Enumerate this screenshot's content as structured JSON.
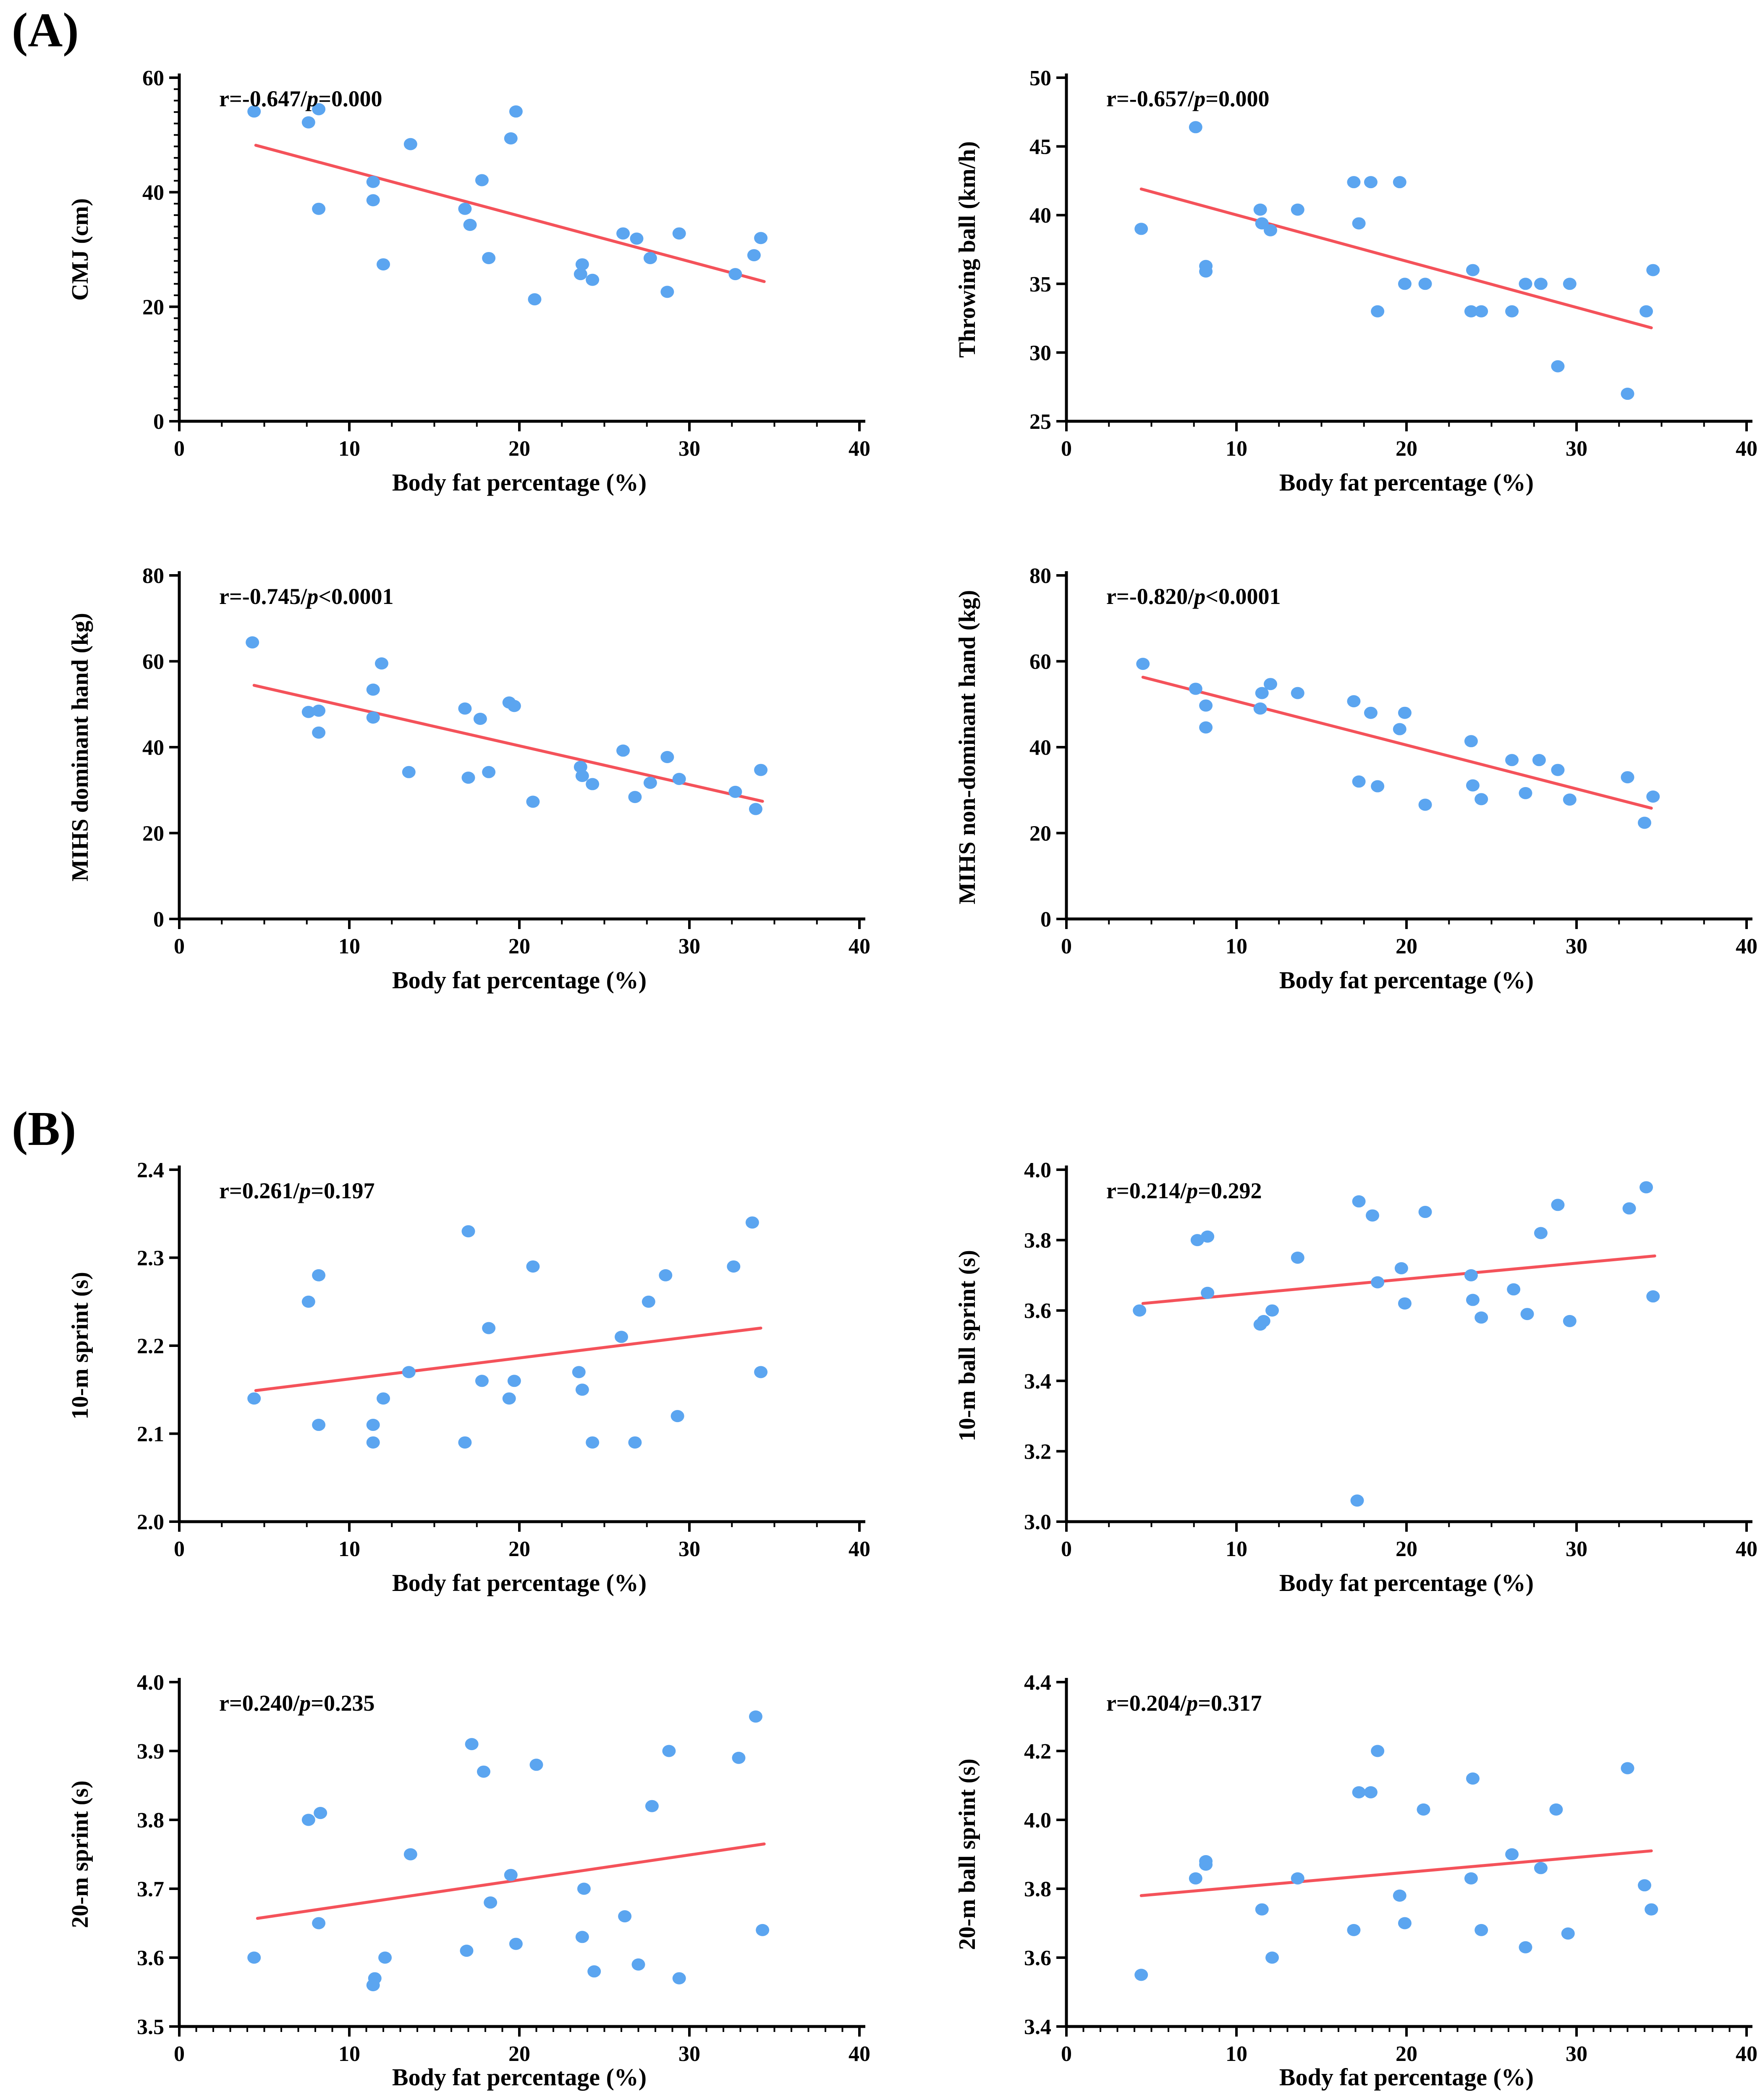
{
  "panels": [
    {
      "label": "(A)"
    },
    {
      "label": "(B)"
    }
  ],
  "styles": {
    "point_color": "#5BA5F0",
    "line_color": "#F4525A",
    "axis_color": "#000000",
    "text_color": "#000000",
    "background": "#FFFFFF"
  },
  "chart_data": [
    {
      "type": "scatter",
      "key": "cmj",
      "panel": "A",
      "ylabel": "CMJ (cm)",
      "xlabel": "Body fat percentage (%)",
      "annotation": {
        "prefix": "r=-0.647/",
        "p": "p",
        "suffix": "=0.000"
      },
      "xlim": [
        0,
        40
      ],
      "ylim": [
        0,
        60
      ],
      "xtick_values": [
        0,
        10,
        20,
        30,
        40
      ],
      "xtick_labels": [
        "0",
        "10",
        "20",
        "30",
        "40"
      ],
      "ytick_values": [
        0,
        20,
        40,
        60
      ],
      "ytick_labels": [
        "0",
        "20",
        "40",
        "60"
      ],
      "x_minor_step": 2.5,
      "y_minor_step": 2,
      "grid": false,
      "legend": null,
      "points": [
        [
          4.4,
          54.1
        ],
        [
          7.6,
          52.2
        ],
        [
          8.2,
          54.5
        ],
        [
          8.2,
          37.1
        ],
        [
          11.4,
          41.8
        ],
        [
          11.4,
          38.6
        ],
        [
          12.0,
          27.4
        ],
        [
          13.6,
          48.4
        ],
        [
          16.8,
          37.1
        ],
        [
          17.1,
          34.3
        ],
        [
          17.8,
          42.1
        ],
        [
          18.2,
          28.5
        ],
        [
          19.5,
          49.4
        ],
        [
          19.8,
          54.1
        ],
        [
          20.9,
          21.3
        ],
        [
          23.6,
          25.7
        ],
        [
          23.7,
          27.4
        ],
        [
          24.3,
          24.7
        ],
        [
          26.1,
          32.8
        ],
        [
          26.9,
          31.9
        ],
        [
          27.7,
          28.5
        ],
        [
          28.7,
          22.6
        ],
        [
          29.4,
          32.8
        ],
        [
          32.7,
          25.7
        ],
        [
          33.8,
          29.0
        ],
        [
          34.2,
          32.0
        ]
      ],
      "trend": {
        "x1": 4.5,
        "y1": 48.2,
        "x2": 34.4,
        "y2": 24.4
      }
    },
    {
      "type": "scatter",
      "key": "throwing-ball",
      "panel": "A",
      "ylabel": "Throwing ball (km/h)",
      "xlabel": "Body fat percentage (%)",
      "annotation": {
        "prefix": "r=-0.657/",
        "p": "p",
        "suffix": "=0.000"
      },
      "xlim": [
        0,
        40
      ],
      "ylim": [
        25,
        50
      ],
      "xtick_values": [
        0,
        10,
        20,
        30,
        40
      ],
      "xtick_labels": [
        "0",
        "10",
        "20",
        "30",
        "40"
      ],
      "ytick_values": [
        25,
        30,
        35,
        40,
        45,
        50
      ],
      "ytick_labels": [
        "25",
        "30",
        "35",
        "40",
        "45",
        "50"
      ],
      "x_minor_step": 2.5,
      "y_minor_step": null,
      "grid": false,
      "legend": null,
      "points": [
        [
          4.4,
          39.0
        ],
        [
          7.6,
          46.4
        ],
        [
          8.2,
          36.3
        ],
        [
          8.2,
          35.9
        ],
        [
          11.4,
          40.4
        ],
        [
          11.5,
          39.4
        ],
        [
          12.0,
          38.9
        ],
        [
          13.6,
          40.4
        ],
        [
          16.9,
          42.4
        ],
        [
          17.2,
          39.4
        ],
        [
          17.9,
          42.4
        ],
        [
          18.3,
          33.0
        ],
        [
          19.6,
          42.4
        ],
        [
          19.9,
          35.0
        ],
        [
          21.1,
          35.0
        ],
        [
          23.8,
          33.0
        ],
        [
          23.9,
          36.0
        ],
        [
          24.4,
          33.0
        ],
        [
          26.2,
          33.0
        ],
        [
          27.0,
          35.0
        ],
        [
          27.9,
          35.0
        ],
        [
          28.9,
          29.0
        ],
        [
          29.6,
          35.0
        ],
        [
          33.0,
          27.0
        ],
        [
          34.1,
          33.0
        ],
        [
          34.5,
          36.0
        ]
      ],
      "trend": {
        "x1": 4.4,
        "y1": 41.9,
        "x2": 34.4,
        "y2": 31.8
      }
    },
    {
      "type": "scatter",
      "key": "mihs-dominant",
      "panel": "A",
      "ylabel": "MIHS dominant hand (kg)",
      "xlabel": "Body fat percentage (%)",
      "annotation": {
        "prefix": "r=-0.745/",
        "p": "p",
        "suffix": "<0.0001"
      },
      "xlim": [
        0,
        40
      ],
      "ylim": [
        0,
        80
      ],
      "xtick_values": [
        0,
        10,
        20,
        30,
        40
      ],
      "xtick_labels": [
        "0",
        "10",
        "20",
        "30",
        "40"
      ],
      "ytick_values": [
        0,
        20,
        40,
        60,
        80
      ],
      "ytick_labels": [
        "0",
        "20",
        "40",
        "60",
        "80"
      ],
      "x_minor_step": 2.5,
      "y_minor_step": null,
      "grid": false,
      "legend": null,
      "points": [
        [
          4.3,
          64.4
        ],
        [
          7.6,
          48.2
        ],
        [
          8.2,
          48.5
        ],
        [
          8.2,
          43.4
        ],
        [
          11.4,
          53.4
        ],
        [
          11.4,
          46.9
        ],
        [
          11.9,
          59.5
        ],
        [
          13.5,
          34.2
        ],
        [
          16.8,
          49.0
        ],
        [
          17.0,
          32.9
        ],
        [
          17.7,
          46.6
        ],
        [
          18.2,
          34.2
        ],
        [
          19.4,
          50.4
        ],
        [
          19.7,
          49.6
        ],
        [
          20.8,
          27.3
        ],
        [
          23.6,
          35.4
        ],
        [
          23.7,
          33.3
        ],
        [
          24.3,
          31.4
        ],
        [
          26.1,
          39.2
        ],
        [
          26.8,
          28.4
        ],
        [
          27.7,
          31.7
        ],
        [
          28.7,
          37.7
        ],
        [
          29.4,
          32.6
        ],
        [
          32.7,
          29.6
        ],
        [
          33.9,
          25.6
        ],
        [
          34.2,
          34.7
        ]
      ],
      "trend": {
        "x1": 4.4,
        "y1": 54.4,
        "x2": 34.3,
        "y2": 27.4
      }
    },
    {
      "type": "scatter",
      "key": "mihs-non-dominant",
      "panel": "A",
      "ylabel": "MIHS non-dominant hand (kg)",
      "xlabel": "Body fat percentage (%)",
      "annotation": {
        "prefix": "r=-0.820/",
        "p": "p",
        "suffix": "<0.0001"
      },
      "xlim": [
        0,
        40
      ],
      "ylim": [
        0,
        80
      ],
      "xtick_values": [
        0,
        10,
        20,
        30,
        40
      ],
      "xtick_labels": [
        "0",
        "10",
        "20",
        "30",
        "40"
      ],
      "ytick_values": [
        0,
        20,
        40,
        60,
        80
      ],
      "ytick_labels": [
        "0",
        "20",
        "40",
        "60",
        "80"
      ],
      "x_minor_step": 2.5,
      "y_minor_step": null,
      "grid": false,
      "legend": null,
      "points": [
        [
          4.5,
          59.4
        ],
        [
          7.6,
          53.6
        ],
        [
          8.2,
          49.7
        ],
        [
          8.2,
          44.6
        ],
        [
          11.4,
          49.0
        ],
        [
          11.5,
          52.6
        ],
        [
          12.0,
          54.7
        ],
        [
          13.6,
          52.6
        ],
        [
          16.9,
          50.7
        ],
        [
          17.2,
          32.0
        ],
        [
          17.9,
          48.0
        ],
        [
          18.3,
          30.9
        ],
        [
          19.6,
          44.2
        ],
        [
          19.9,
          48.0
        ],
        [
          21.1,
          26.6
        ],
        [
          23.8,
          41.4
        ],
        [
          23.9,
          31.1
        ],
        [
          24.4,
          27.9
        ],
        [
          26.2,
          37.0
        ],
        [
          27.0,
          29.3
        ],
        [
          27.8,
          37.0
        ],
        [
          28.9,
          34.7
        ],
        [
          29.6,
          27.8
        ],
        [
          33.0,
          33.0
        ],
        [
          34.0,
          22.4
        ],
        [
          34.5,
          28.5
        ]
      ],
      "trend": {
        "x1": 4.5,
        "y1": 56.3,
        "x2": 34.4,
        "y2": 25.8
      }
    },
    {
      "type": "scatter",
      "key": "sprint-10m",
      "panel": "B",
      "ylabel": "10-m sprint (s)",
      "xlabel": "Body fat percentage (%)",
      "annotation": {
        "prefix": "r=0.261/",
        "p": "p",
        "suffix": "=0.197"
      },
      "xlim": [
        0,
        40
      ],
      "ylim": [
        2.0,
        2.4
      ],
      "xtick_values": [
        0,
        10,
        20,
        30,
        40
      ],
      "xtick_labels": [
        "0",
        "10",
        "20",
        "30",
        "40"
      ],
      "ytick_values": [
        2.0,
        2.1,
        2.2,
        2.3,
        2.4
      ],
      "ytick_labels": [
        "2.0",
        "2.1",
        "2.2",
        "2.3",
        "2.4"
      ],
      "x_minor_step": 2.5,
      "y_minor_step": null,
      "grid": false,
      "legend": null,
      "points": [
        [
          4.4,
          2.14
        ],
        [
          7.6,
          2.25
        ],
        [
          8.2,
          2.28
        ],
        [
          8.2,
          2.11
        ],
        [
          11.4,
          2.11
        ],
        [
          11.4,
          2.09
        ],
        [
          12.0,
          2.14
        ],
        [
          13.5,
          2.17
        ],
        [
          16.8,
          2.09
        ],
        [
          17.0,
          2.33
        ],
        [
          17.8,
          2.16
        ],
        [
          18.2,
          2.22
        ],
        [
          19.4,
          2.14
        ],
        [
          19.7,
          2.16
        ],
        [
          20.8,
          2.29
        ],
        [
          23.5,
          2.17
        ],
        [
          23.7,
          2.15
        ],
        [
          24.3,
          2.09
        ],
        [
          26.0,
          2.21
        ],
        [
          26.8,
          2.09
        ],
        [
          27.6,
          2.25
        ],
        [
          28.6,
          2.28
        ],
        [
          29.3,
          2.12
        ],
        [
          32.6,
          2.29
        ],
        [
          33.7,
          2.34
        ],
        [
          34.2,
          2.17
        ]
      ],
      "trend": {
        "x1": 4.5,
        "y1": 2.149,
        "x2": 34.2,
        "y2": 2.22
      }
    },
    {
      "type": "scatter",
      "key": "ball-sprint-10m",
      "panel": "B",
      "ylabel": "10-m ball sprint (s)",
      "xlabel": "Body fat percentage (%)",
      "annotation": {
        "prefix": "r=0.214/",
        "p": "p",
        "suffix": "=0.292"
      },
      "xlim": [
        0,
        40
      ],
      "ylim": [
        3.0,
        4.0
      ],
      "xtick_values": [
        0,
        10,
        20,
        30,
        40
      ],
      "xtick_labels": [
        "0",
        "10",
        "20",
        "30",
        "40"
      ],
      "ytick_values": [
        3.0,
        3.2,
        3.4,
        3.6,
        3.8,
        4.0
      ],
      "ytick_labels": [
        "3.0",
        "3.2",
        "3.4",
        "3.6",
        "3.8",
        "4.0"
      ],
      "x_minor_step": 2.5,
      "y_minor_step": null,
      "grid": false,
      "legend": null,
      "points": [
        [
          4.3,
          3.6
        ],
        [
          7.7,
          3.8
        ],
        [
          8.3,
          3.81
        ],
        [
          8.3,
          3.65
        ],
        [
          11.4,
          3.56
        ],
        [
          11.6,
          3.57
        ],
        [
          12.1,
          3.6
        ],
        [
          13.6,
          3.75
        ],
        [
          17.1,
          3.06
        ],
        [
          17.2,
          3.91
        ],
        [
          18.0,
          3.87
        ],
        [
          18.3,
          3.68
        ],
        [
          19.7,
          3.72
        ],
        [
          19.9,
          3.62
        ],
        [
          21.1,
          3.88
        ],
        [
          23.8,
          3.7
        ],
        [
          23.9,
          3.63
        ],
        [
          24.4,
          3.58
        ],
        [
          26.3,
          3.66
        ],
        [
          27.1,
          3.59
        ],
        [
          27.9,
          3.82
        ],
        [
          28.9,
          3.9
        ],
        [
          29.6,
          3.57
        ],
        [
          33.1,
          3.89
        ],
        [
          34.1,
          3.95
        ],
        [
          34.5,
          3.64
        ]
      ],
      "trend": {
        "x1": 4.5,
        "y1": 3.62,
        "x2": 34.6,
        "y2": 3.755
      }
    },
    {
      "type": "scatter",
      "key": "sprint-20m",
      "panel": "B",
      "ylabel": "20-m sprint (s)",
      "xlabel": "Body fat percentage (%)",
      "annotation": {
        "prefix": "r=0.240/",
        "p": "p",
        "suffix": "=0.235"
      },
      "xlim": [
        0,
        40
      ],
      "ylim": [
        3.5,
        4.0
      ],
      "xtick_values": [
        0,
        10,
        20,
        30,
        40
      ],
      "xtick_labels": [
        "0",
        "10",
        "20",
        "30",
        "40"
      ],
      "ytick_values": [
        3.5,
        3.6,
        3.7,
        3.8,
        3.9,
        4.0
      ],
      "ytick_labels": [
        "3.5",
        "3.6",
        "3.7",
        "3.8",
        "3.9",
        "4.0"
      ],
      "x_minor_step": 1,
      "y_minor_step": null,
      "grid": false,
      "legend": null,
      "points": [
        [
          4.4,
          3.6
        ],
        [
          7.6,
          3.8
        ],
        [
          8.3,
          3.81
        ],
        [
          8.2,
          3.65
        ],
        [
          11.4,
          3.56
        ],
        [
          11.5,
          3.57
        ],
        [
          12.1,
          3.6
        ],
        [
          13.6,
          3.75
        ],
        [
          16.9,
          3.61
        ],
        [
          17.2,
          3.91
        ],
        [
          17.9,
          3.87
        ],
        [
          18.3,
          3.68
        ],
        [
          19.5,
          3.72
        ],
        [
          19.8,
          3.62
        ],
        [
          21.0,
          3.88
        ],
        [
          23.7,
          3.63
        ],
        [
          23.8,
          3.7
        ],
        [
          24.4,
          3.58
        ],
        [
          26.2,
          3.66
        ],
        [
          27.0,
          3.59
        ],
        [
          27.8,
          3.82
        ],
        [
          28.8,
          3.9
        ],
        [
          29.4,
          3.57
        ],
        [
          32.9,
          3.89
        ],
        [
          33.9,
          3.95
        ],
        [
          34.3,
          3.64
        ]
      ],
      "trend": {
        "x1": 4.6,
        "y1": 3.657,
        "x2": 34.4,
        "y2": 3.765
      }
    },
    {
      "type": "scatter",
      "key": "ball-sprint-20m",
      "panel": "B",
      "ylabel": "20-m ball sprint (s)",
      "xlabel": "Body fat percentage (%)",
      "annotation": {
        "prefix": "r=0.204/",
        "p": "p",
        "suffix": "=0.317"
      },
      "xlim": [
        0,
        40
      ],
      "ylim": [
        3.4,
        4.4
      ],
      "xtick_values": [
        0,
        10,
        20,
        30,
        40
      ],
      "xtick_labels": [
        "0",
        "10",
        "20",
        "30",
        "40"
      ],
      "ytick_values": [
        3.4,
        3.6,
        3.8,
        4.0,
        4.2,
        4.4
      ],
      "ytick_labels": [
        "3.4",
        "3.6",
        "3.8",
        "4.0",
        "4.2",
        "4.4"
      ],
      "x_minor_step": 1,
      "y_minor_step": null,
      "grid": false,
      "legend": null,
      "points": [
        [
          4.4,
          3.55
        ],
        [
          7.6,
          3.83
        ],
        [
          8.2,
          3.88
        ],
        [
          8.2,
          3.87
        ],
        [
          11.5,
          3.74
        ],
        [
          12.1,
          3.6
        ],
        [
          13.6,
          3.83
        ],
        [
          16.9,
          3.68
        ],
        [
          17.2,
          4.08
        ],
        [
          17.9,
          4.08
        ],
        [
          18.3,
          4.2
        ],
        [
          19.6,
          3.78
        ],
        [
          19.9,
          3.7
        ],
        [
          21.0,
          4.03
        ],
        [
          23.8,
          3.83
        ],
        [
          23.9,
          4.12
        ],
        [
          24.4,
          3.68
        ],
        [
          26.2,
          3.9
        ],
        [
          27.0,
          3.63
        ],
        [
          27.9,
          3.86
        ],
        [
          28.8,
          4.03
        ],
        [
          29.5,
          3.67
        ],
        [
          33.0,
          4.15
        ],
        [
          34.0,
          3.81
        ],
        [
          34.4,
          3.74
        ]
      ],
      "trend": {
        "x1": 4.4,
        "y1": 3.78,
        "x2": 34.4,
        "y2": 3.91
      }
    }
  ]
}
